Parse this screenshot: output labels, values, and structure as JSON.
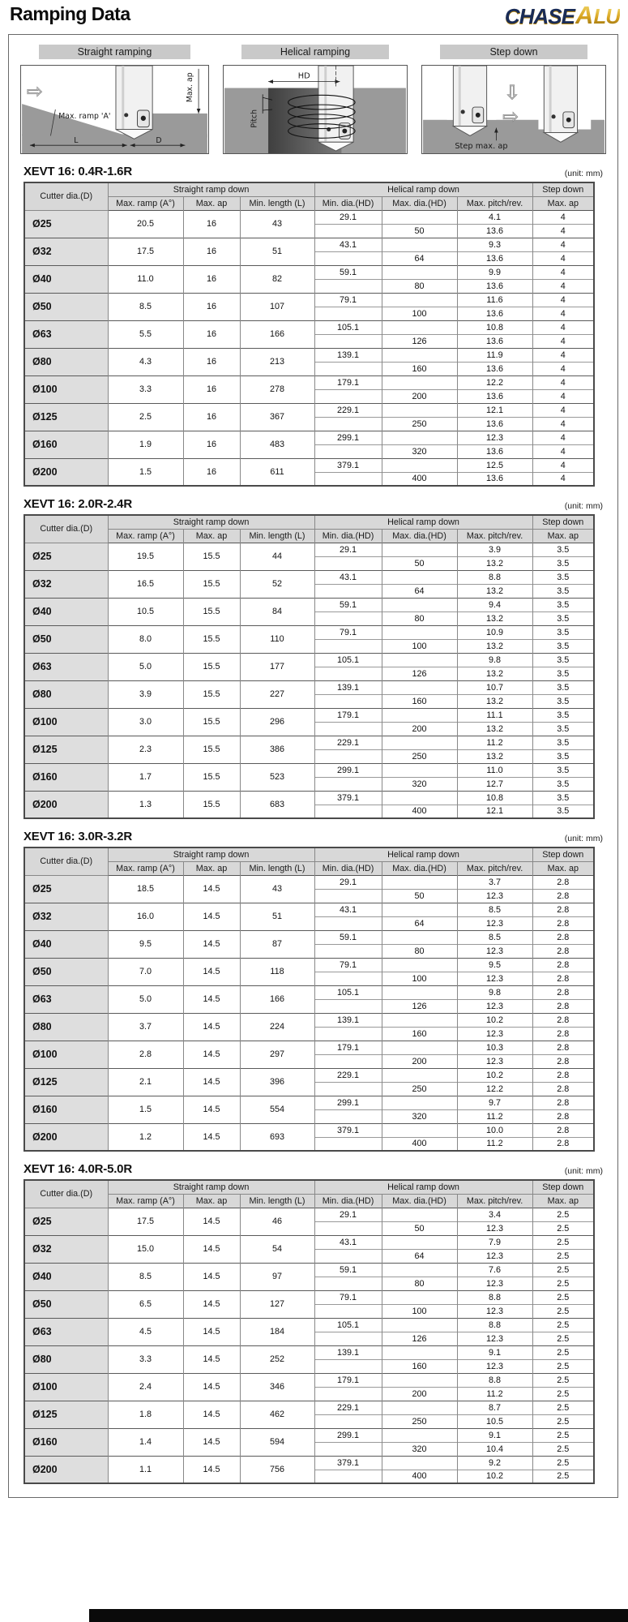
{
  "page": {
    "title": "Ramping Data",
    "unit_label": "(unit: mm)",
    "logo": {
      "part1": "CHASE",
      "part2": "A",
      "part3": "LU"
    }
  },
  "diagrams": {
    "straight": {
      "label": "Straight ramping",
      "ann_ramp": "Max. ramp 'A'",
      "ann_ap": "Max. ap",
      "ann_l": "L",
      "ann_d": "D",
      "arrow": "⇨"
    },
    "helical": {
      "label": "Helical ramping",
      "ann_hd": "HD",
      "ann_pitch": "Pitch"
    },
    "step": {
      "label": "Step down",
      "ann_step": "Step max. ap",
      "arrow_down": "⇩",
      "arrow_right": "⇨"
    }
  },
  "table_headers": {
    "cutter_dia": "Cutter dia.(D)",
    "group_straight": "Straight ramp down",
    "group_helical": "Helical ramp down",
    "group_step": "Step down",
    "sub": [
      "Max. ramp (A°)",
      "Max. ap",
      "Min. length (L)",
      "Min. dia.(HD)",
      "Max. dia.(HD)",
      "Max. pitch/rev.",
      "Max. ap"
    ]
  },
  "tables": [
    {
      "title": "XEVT 16: 0.4R-1.6R",
      "rows": [
        {
          "dia": "Ø25",
          "ramp": "20.5",
          "ap": "16",
          "len": "43",
          "min_hd": "29.1",
          "max_hd": "50",
          "pitch1": "4.1",
          "pitch2": "13.6",
          "step1": "4",
          "step2": "4"
        },
        {
          "dia": "Ø32",
          "ramp": "17.5",
          "ap": "16",
          "len": "51",
          "min_hd": "43.1",
          "max_hd": "64",
          "pitch1": "9.3",
          "pitch2": "13.6",
          "step1": "4",
          "step2": "4"
        },
        {
          "dia": "Ø40",
          "ramp": "11.0",
          "ap": "16",
          "len": "82",
          "min_hd": "59.1",
          "max_hd": "80",
          "pitch1": "9.9",
          "pitch2": "13.6",
          "step1": "4",
          "step2": "4"
        },
        {
          "dia": "Ø50",
          "ramp": "8.5",
          "ap": "16",
          "len": "107",
          "min_hd": "79.1",
          "max_hd": "100",
          "pitch1": "11.6",
          "pitch2": "13.6",
          "step1": "4",
          "step2": "4"
        },
        {
          "dia": "Ø63",
          "ramp": "5.5",
          "ap": "16",
          "len": "166",
          "min_hd": "105.1",
          "max_hd": "126",
          "pitch1": "10.8",
          "pitch2": "13.6",
          "step1": "4",
          "step2": "4"
        },
        {
          "dia": "Ø80",
          "ramp": "4.3",
          "ap": "16",
          "len": "213",
          "min_hd": "139.1",
          "max_hd": "160",
          "pitch1": "11.9",
          "pitch2": "13.6",
          "step1": "4",
          "step2": "4"
        },
        {
          "dia": "Ø100",
          "ramp": "3.3",
          "ap": "16",
          "len": "278",
          "min_hd": "179.1",
          "max_hd": "200",
          "pitch1": "12.2",
          "pitch2": "13.6",
          "step1": "4",
          "step2": "4"
        },
        {
          "dia": "Ø125",
          "ramp": "2.5",
          "ap": "16",
          "len": "367",
          "min_hd": "229.1",
          "max_hd": "250",
          "pitch1": "12.1",
          "pitch2": "13.6",
          "step1": "4",
          "step2": "4"
        },
        {
          "dia": "Ø160",
          "ramp": "1.9",
          "ap": "16",
          "len": "483",
          "min_hd": "299.1",
          "max_hd": "320",
          "pitch1": "12.3",
          "pitch2": "13.6",
          "step1": "4",
          "step2": "4"
        },
        {
          "dia": "Ø200",
          "ramp": "1.5",
          "ap": "16",
          "len": "611",
          "min_hd": "379.1",
          "max_hd": "400",
          "pitch1": "12.5",
          "pitch2": "13.6",
          "step1": "4",
          "step2": "4"
        }
      ]
    },
    {
      "title": "XEVT 16: 2.0R-2.4R",
      "rows": [
        {
          "dia": "Ø25",
          "ramp": "19.5",
          "ap": "15.5",
          "len": "44",
          "min_hd": "29.1",
          "max_hd": "50",
          "pitch1": "3.9",
          "pitch2": "13.2",
          "step1": "3.5",
          "step2": "3.5"
        },
        {
          "dia": "Ø32",
          "ramp": "16.5",
          "ap": "15.5",
          "len": "52",
          "min_hd": "43.1",
          "max_hd": "64",
          "pitch1": "8.8",
          "pitch2": "13.2",
          "step1": "3.5",
          "step2": "3.5"
        },
        {
          "dia": "Ø40",
          "ramp": "10.5",
          "ap": "15.5",
          "len": "84",
          "min_hd": "59.1",
          "max_hd": "80",
          "pitch1": "9.4",
          "pitch2": "13.2",
          "step1": "3.5",
          "step2": "3.5"
        },
        {
          "dia": "Ø50",
          "ramp": "8.0",
          "ap": "15.5",
          "len": "110",
          "min_hd": "79.1",
          "max_hd": "100",
          "pitch1": "10.9",
          "pitch2": "13.2",
          "step1": "3.5",
          "step2": "3.5"
        },
        {
          "dia": "Ø63",
          "ramp": "5.0",
          "ap": "15.5",
          "len": "177",
          "min_hd": "105.1",
          "max_hd": "126",
          "pitch1": "9.8",
          "pitch2": "13.2",
          "step1": "3.5",
          "step2": "3.5"
        },
        {
          "dia": "Ø80",
          "ramp": "3.9",
          "ap": "15.5",
          "len": "227",
          "min_hd": "139.1",
          "max_hd": "160",
          "pitch1": "10.7",
          "pitch2": "13.2",
          "step1": "3.5",
          "step2": "3.5"
        },
        {
          "dia": "Ø100",
          "ramp": "3.0",
          "ap": "15.5",
          "len": "296",
          "min_hd": "179.1",
          "max_hd": "200",
          "pitch1": "11.1",
          "pitch2": "13.2",
          "step1": "3.5",
          "step2": "3.5"
        },
        {
          "dia": "Ø125",
          "ramp": "2.3",
          "ap": "15.5",
          "len": "386",
          "min_hd": "229.1",
          "max_hd": "250",
          "pitch1": "11.2",
          "pitch2": "13.2",
          "step1": "3.5",
          "step2": "3.5"
        },
        {
          "dia": "Ø160",
          "ramp": "1.7",
          "ap": "15.5",
          "len": "523",
          "min_hd": "299.1",
          "max_hd": "320",
          "pitch1": "11.0",
          "pitch2": "12.7",
          "step1": "3.5",
          "step2": "3.5"
        },
        {
          "dia": "Ø200",
          "ramp": "1.3",
          "ap": "15.5",
          "len": "683",
          "min_hd": "379.1",
          "max_hd": "400",
          "pitch1": "10.8",
          "pitch2": "12.1",
          "step1": "3.5",
          "step2": "3.5"
        }
      ]
    },
    {
      "title": "XEVT 16: 3.0R-3.2R",
      "rows": [
        {
          "dia": "Ø25",
          "ramp": "18.5",
          "ap": "14.5",
          "len": "43",
          "min_hd": "29.1",
          "max_hd": "50",
          "pitch1": "3.7",
          "pitch2": "12.3",
          "step1": "2.8",
          "step2": "2.8"
        },
        {
          "dia": "Ø32",
          "ramp": "16.0",
          "ap": "14.5",
          "len": "51",
          "min_hd": "43.1",
          "max_hd": "64",
          "pitch1": "8.5",
          "pitch2": "12.3",
          "step1": "2.8",
          "step2": "2.8"
        },
        {
          "dia": "Ø40",
          "ramp": "9.5",
          "ap": "14.5",
          "len": "87",
          "min_hd": "59.1",
          "max_hd": "80",
          "pitch1": "8.5",
          "pitch2": "12.3",
          "step1": "2.8",
          "step2": "2.8"
        },
        {
          "dia": "Ø50",
          "ramp": "7.0",
          "ap": "14.5",
          "len": "118",
          "min_hd": "79.1",
          "max_hd": "100",
          "pitch1": "9.5",
          "pitch2": "12.3",
          "step1": "2.8",
          "step2": "2.8"
        },
        {
          "dia": "Ø63",
          "ramp": "5.0",
          "ap": "14.5",
          "len": "166",
          "min_hd": "105.1",
          "max_hd": "126",
          "pitch1": "9.8",
          "pitch2": "12.3",
          "step1": "2.8",
          "step2": "2.8"
        },
        {
          "dia": "Ø80",
          "ramp": "3.7",
          "ap": "14.5",
          "len": "224",
          "min_hd": "139.1",
          "max_hd": "160",
          "pitch1": "10.2",
          "pitch2": "12.3",
          "step1": "2.8",
          "step2": "2.8"
        },
        {
          "dia": "Ø100",
          "ramp": "2.8",
          "ap": "14.5",
          "len": "297",
          "min_hd": "179.1",
          "max_hd": "200",
          "pitch1": "10.3",
          "pitch2": "12.3",
          "step1": "2.8",
          "step2": "2.8"
        },
        {
          "dia": "Ø125",
          "ramp": "2.1",
          "ap": "14.5",
          "len": "396",
          "min_hd": "229.1",
          "max_hd": "250",
          "pitch1": "10.2",
          "pitch2": "12.2",
          "step1": "2.8",
          "step2": "2.8"
        },
        {
          "dia": "Ø160",
          "ramp": "1.5",
          "ap": "14.5",
          "len": "554",
          "min_hd": "299.1",
          "max_hd": "320",
          "pitch1": "9.7",
          "pitch2": "11.2",
          "step1": "2.8",
          "step2": "2.8"
        },
        {
          "dia": "Ø200",
          "ramp": "1.2",
          "ap": "14.5",
          "len": "693",
          "min_hd": "379.1",
          "max_hd": "400",
          "pitch1": "10.0",
          "pitch2": "11.2",
          "step1": "2.8",
          "step2": "2.8"
        }
      ]
    },
    {
      "title": "XEVT 16: 4.0R-5.0R",
      "rows": [
        {
          "dia": "Ø25",
          "ramp": "17.5",
          "ap": "14.5",
          "len": "46",
          "min_hd": "29.1",
          "max_hd": "50",
          "pitch1": "3.4",
          "pitch2": "12.3",
          "step1": "2.5",
          "step2": "2.5"
        },
        {
          "dia": "Ø32",
          "ramp": "15.0",
          "ap": "14.5",
          "len": "54",
          "min_hd": "43.1",
          "max_hd": "64",
          "pitch1": "7.9",
          "pitch2": "12.3",
          "step1": "2.5",
          "step2": "2.5"
        },
        {
          "dia": "Ø40",
          "ramp": "8.5",
          "ap": "14.5",
          "len": "97",
          "min_hd": "59.1",
          "max_hd": "80",
          "pitch1": "7.6",
          "pitch2": "12.3",
          "step1": "2.5",
          "step2": "2.5"
        },
        {
          "dia": "Ø50",
          "ramp": "6.5",
          "ap": "14.5",
          "len": "127",
          "min_hd": "79.1",
          "max_hd": "100",
          "pitch1": "8.8",
          "pitch2": "12.3",
          "step1": "2.5",
          "step2": "2.5"
        },
        {
          "dia": "Ø63",
          "ramp": "4.5",
          "ap": "14.5",
          "len": "184",
          "min_hd": "105.1",
          "max_hd": "126",
          "pitch1": "8.8",
          "pitch2": "12.3",
          "step1": "2.5",
          "step2": "2.5"
        },
        {
          "dia": "Ø80",
          "ramp": "3.3",
          "ap": "14.5",
          "len": "252",
          "min_hd": "139.1",
          "max_hd": "160",
          "pitch1": "9.1",
          "pitch2": "12.3",
          "step1": "2.5",
          "step2": "2.5"
        },
        {
          "dia": "Ø100",
          "ramp": "2.4",
          "ap": "14.5",
          "len": "346",
          "min_hd": "179.1",
          "max_hd": "200",
          "pitch1": "8.8",
          "pitch2": "11.2",
          "step1": "2.5",
          "step2": "2.5"
        },
        {
          "dia": "Ø125",
          "ramp": "1.8",
          "ap": "14.5",
          "len": "462",
          "min_hd": "229.1",
          "max_hd": "250",
          "pitch1": "8.7",
          "pitch2": "10.5",
          "step1": "2.5",
          "step2": "2.5"
        },
        {
          "dia": "Ø160",
          "ramp": "1.4",
          "ap": "14.5",
          "len": "594",
          "min_hd": "299.1",
          "max_hd": "320",
          "pitch1": "9.1",
          "pitch2": "10.4",
          "step1": "2.5",
          "step2": "2.5"
        },
        {
          "dia": "Ø200",
          "ramp": "1.1",
          "ap": "14.5",
          "len": "756",
          "min_hd": "379.1",
          "max_hd": "400",
          "pitch1": "9.2",
          "pitch2": "10.2",
          "step1": "2.5",
          "step2": "2.5"
        }
      ]
    }
  ]
}
